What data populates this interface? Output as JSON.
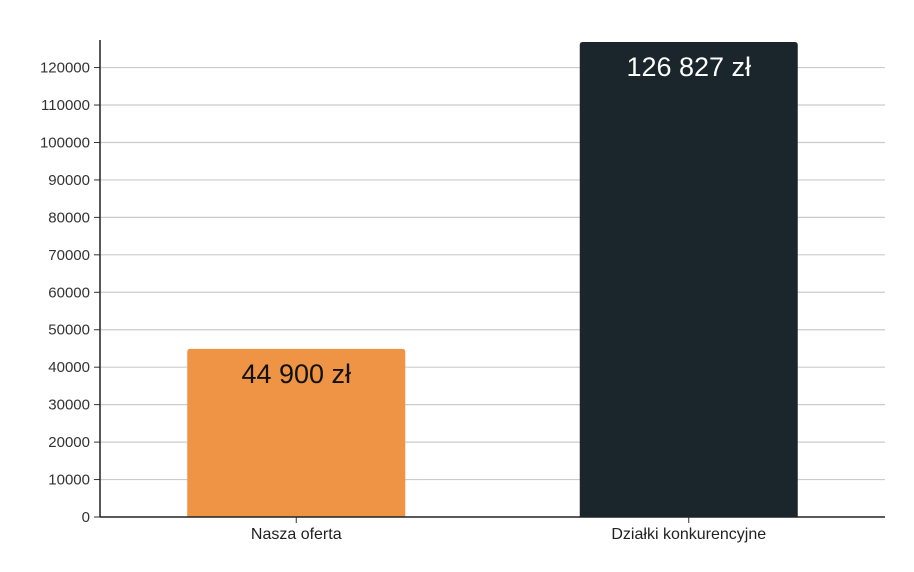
{
  "chart_data": {
    "type": "bar",
    "categories": [
      "Nasza oferta",
      "Działki konkurencyjne"
    ],
    "values": [
      44900,
      126827
    ],
    "data_labels": [
      "44 900 zł",
      "126 827 zł"
    ],
    "colors": [
      "#ee9444",
      "#1b262c"
    ],
    "data_label_colors": [
      "#111111",
      "#ffffff"
    ],
    "yticks": [
      0,
      10000,
      20000,
      30000,
      40000,
      50000,
      60000,
      70000,
      80000,
      90000,
      100000,
      110000,
      120000
    ],
    "ylim": [
      0,
      126827
    ],
    "grid": true,
    "title": "",
    "xlabel": "",
    "ylabel": ""
  }
}
